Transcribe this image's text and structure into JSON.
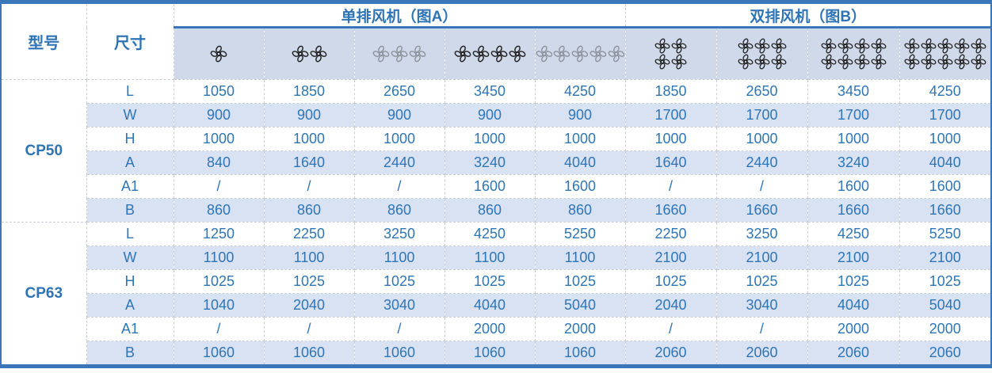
{
  "colors": {
    "accent": "#3a76b8",
    "header_text": "#2e74b5",
    "data_text": "#2e75b6",
    "band_bg": "#d9e2f3",
    "fan_row_bg": "#cfd9ea",
    "grid_line": "#c9cdd4",
    "fan_black": "#1f1f1f",
    "fan_gray": "#8d939c"
  },
  "table": {
    "model_header": "型号",
    "dimension_header": "尺寸",
    "sections": [
      {
        "title": "单排风机（图A）",
        "fan_columns": [
          {
            "fans_per_row": 1,
            "fan_rows": 1,
            "color": "black"
          },
          {
            "fans_per_row": 2,
            "fan_rows": 1,
            "color": "black"
          },
          {
            "fans_per_row": 3,
            "fan_rows": 1,
            "color": "gray"
          },
          {
            "fans_per_row": 4,
            "fan_rows": 1,
            "color": "black"
          },
          {
            "fans_per_row": 5,
            "fan_rows": 1,
            "color": "gray"
          }
        ]
      },
      {
        "title": "双排风机（图B）",
        "fan_columns": [
          {
            "fans_per_row": 2,
            "fan_rows": 2,
            "color": "black"
          },
          {
            "fans_per_row": 3,
            "fan_rows": 2,
            "color": "black"
          },
          {
            "fans_per_row": 4,
            "fan_rows": 2,
            "color": "black"
          },
          {
            "fans_per_row": 5,
            "fan_rows": 2,
            "color": "black"
          }
        ]
      }
    ],
    "groups": [
      {
        "model": "CP50",
        "rows": [
          {
            "label": "L",
            "values": [
              "1050",
              "1850",
              "2650",
              "3450",
              "4250",
              "1850",
              "2650",
              "3450",
              "4250"
            ]
          },
          {
            "label": "W",
            "values": [
              "900",
              "900",
              "900",
              "900",
              "900",
              "1700",
              "1700",
              "1700",
              "1700"
            ]
          },
          {
            "label": "H",
            "values": [
              "1000",
              "1000",
              "1000",
              "1000",
              "1000",
              "1000",
              "1000",
              "1000",
              "1000"
            ]
          },
          {
            "label": "A",
            "values": [
              "840",
              "1640",
              "2440",
              "3240",
              "4040",
              "1640",
              "2440",
              "3240",
              "4040"
            ]
          },
          {
            "label": "A1",
            "values": [
              "/",
              "/",
              "/",
              "1600",
              "1600",
              "/",
              "/",
              "1600",
              "1600"
            ]
          },
          {
            "label": "B",
            "values": [
              "860",
              "860",
              "860",
              "860",
              "860",
              "1660",
              "1660",
              "1660",
              "1660"
            ]
          }
        ]
      },
      {
        "model": "CP63",
        "rows": [
          {
            "label": "L",
            "values": [
              "1250",
              "2250",
              "3250",
              "4250",
              "5250",
              "2250",
              "3250",
              "4250",
              "5250"
            ]
          },
          {
            "label": "W",
            "values": [
              "1100",
              "1100",
              "1100",
              "1100",
              "1100",
              "2100",
              "2100",
              "2100",
              "2100"
            ]
          },
          {
            "label": "H",
            "values": [
              "1025",
              "1025",
              "1025",
              "1025",
              "1025",
              "1025",
              "1025",
              "1025",
              "1025"
            ]
          },
          {
            "label": "A",
            "values": [
              "1040",
              "2040",
              "3040",
              "4040",
              "5040",
              "2040",
              "3040",
              "4040",
              "5040"
            ]
          },
          {
            "label": "A1",
            "values": [
              "/",
              "/",
              "/",
              "2000",
              "2000",
              "/",
              "/",
              "2000",
              "2000"
            ]
          },
          {
            "label": "B",
            "values": [
              "1060",
              "1060",
              "1060",
              "1060",
              "1060",
              "2060",
              "2060",
              "2060",
              "2060"
            ]
          }
        ]
      }
    ]
  }
}
